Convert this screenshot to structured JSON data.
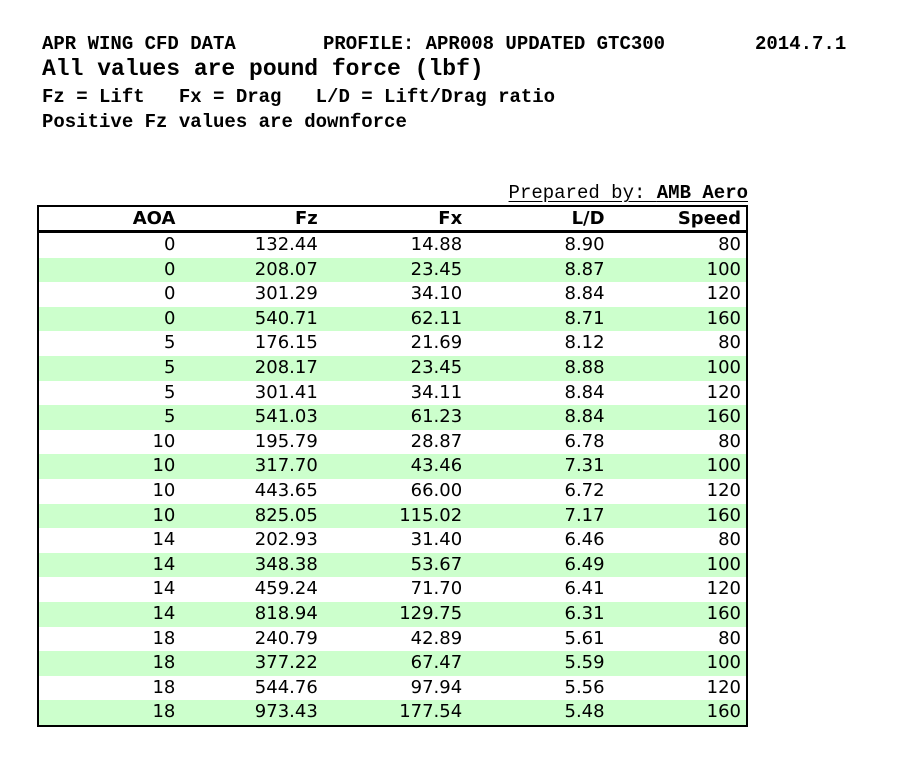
{
  "header": {
    "title_left": "APR WING CFD DATA",
    "title_profile": "PROFILE: APR008 UPDATED GTC300",
    "title_date": "2014.7.1",
    "subtitle": "All values are pound force (lbf)",
    "legend": "Fz = Lift   Fx = Drag   L/D = Lift/Drag ratio",
    "note": "Positive Fz values are downforce"
  },
  "prepared_by": {
    "label": "Prepared by: ",
    "value": "AMB Aero"
  },
  "table": {
    "columns": [
      "AOA",
      "Fz",
      "Fx",
      "L/D",
      "Speed"
    ],
    "rows": [
      [
        "0",
        "132.44",
        "14.88",
        "8.90",
        "80"
      ],
      [
        "0",
        "208.07",
        "23.45",
        "8.87",
        "100"
      ],
      [
        "0",
        "301.29",
        "34.10",
        "8.84",
        "120"
      ],
      [
        "0",
        "540.71",
        "62.11",
        "8.71",
        "160"
      ],
      [
        "5",
        "176.15",
        "21.69",
        "8.12",
        "80"
      ],
      [
        "5",
        "208.17",
        "23.45",
        "8.88",
        "100"
      ],
      [
        "5",
        "301.41",
        "34.11",
        "8.84",
        "120"
      ],
      [
        "5",
        "541.03",
        "61.23",
        "8.84",
        "160"
      ],
      [
        "10",
        "195.79",
        "28.87",
        "6.78",
        "80"
      ],
      [
        "10",
        "317.70",
        "43.46",
        "7.31",
        "100"
      ],
      [
        "10",
        "443.65",
        "66.00",
        "6.72",
        "120"
      ],
      [
        "10",
        "825.05",
        "115.02",
        "7.17",
        "160"
      ],
      [
        "14",
        "202.93",
        "31.40",
        "6.46",
        "80"
      ],
      [
        "14",
        "348.38",
        "53.67",
        "6.49",
        "100"
      ],
      [
        "14",
        "459.24",
        "71.70",
        "6.41",
        "120"
      ],
      [
        "14",
        "818.94",
        "129.75",
        "6.31",
        "160"
      ],
      [
        "18",
        "240.79",
        "42.89",
        "5.61",
        "80"
      ],
      [
        "18",
        "377.22",
        "67.47",
        "5.59",
        "100"
      ],
      [
        "18",
        "544.76",
        "97.94",
        "5.56",
        "120"
      ],
      [
        "18",
        "973.43",
        "177.54",
        "5.48",
        "160"
      ]
    ]
  },
  "colors": {
    "row_stripe": "#ccffcc",
    "border": "#000000",
    "text": "#000000",
    "background": "#ffffff"
  }
}
